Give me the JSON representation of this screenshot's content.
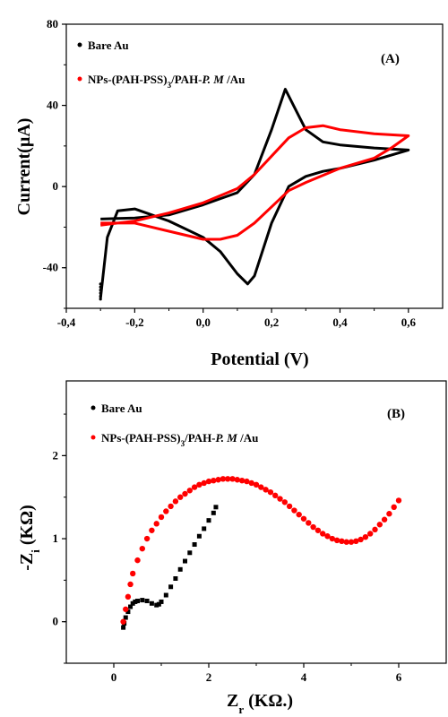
{
  "chart_data": [
    {
      "type": "line",
      "panel_label": "(A)",
      "xlabel": "Potential (V)",
      "ylabel": "Current(µA)",
      "xlim": [
        -0.4,
        0.7
      ],
      "ylim": [
        -60,
        80
      ],
      "xticks": [
        -0.4,
        -0.2,
        0.0,
        0.2,
        0.4,
        0.6
      ],
      "xtick_labels": [
        "-0,4",
        "-0,2",
        "0,0",
        "0,2",
        "0,4",
        "0,6"
      ],
      "yticks": [
        -40,
        0,
        40,
        80
      ],
      "ytick_labels": [
        "-40",
        "0",
        "40",
        "80"
      ],
      "legend_position": "top-left",
      "series": [
        {
          "name": "Bare Au",
          "color": "#000000",
          "forward": [
            [
              -0.3,
              -16
            ],
            [
              -0.2,
              -15.5
            ],
            [
              -0.1,
              -14
            ],
            [
              0.0,
              -9
            ],
            [
              0.1,
              -3
            ],
            [
              0.15,
              6
            ],
            [
              0.2,
              28
            ],
            [
              0.24,
              48
            ],
            [
              0.27,
              38
            ],
            [
              0.3,
              28
            ],
            [
              0.35,
              22
            ],
            [
              0.4,
              20.5
            ],
            [
              0.5,
              19
            ],
            [
              0.6,
              18
            ]
          ],
          "reverse": [
            [
              0.6,
              18
            ],
            [
              0.5,
              13
            ],
            [
              0.4,
              9
            ],
            [
              0.35,
              7.5
            ],
            [
              0.3,
              5
            ],
            [
              0.25,
              0
            ],
            [
              0.2,
              -18
            ],
            [
              0.15,
              -44
            ],
            [
              0.13,
              -48
            ],
            [
              0.1,
              -43
            ],
            [
              0.05,
              -32
            ],
            [
              0.0,
              -25
            ],
            [
              -0.1,
              -17
            ],
            [
              -0.15,
              -14
            ],
            [
              -0.2,
              -11
            ],
            [
              -0.25,
              -12
            ],
            [
              -0.28,
              -25
            ],
            [
              -0.3,
              -55
            ]
          ]
        },
        {
          "name": "NPs-(PAH-PSS)3/PAH-P. M /Au",
          "color": "#ff0000",
          "forward": [
            [
              -0.3,
              -19
            ],
            [
              -0.2,
              -17
            ],
            [
              -0.1,
              -13
            ],
            [
              0.0,
              -8
            ],
            [
              0.1,
              -1
            ],
            [
              0.15,
              6
            ],
            [
              0.2,
              15
            ],
            [
              0.25,
              24
            ],
            [
              0.3,
              29
            ],
            [
              0.35,
              30
            ],
            [
              0.4,
              28
            ],
            [
              0.5,
              26
            ],
            [
              0.6,
              25
            ]
          ],
          "reverse": [
            [
              0.6,
              25
            ],
            [
              0.55,
              19
            ],
            [
              0.5,
              14
            ],
            [
              0.4,
              9
            ],
            [
              0.3,
              2
            ],
            [
              0.25,
              -2
            ],
            [
              0.2,
              -10
            ],
            [
              0.15,
              -18
            ],
            [
              0.1,
              -24
            ],
            [
              0.05,
              -26
            ],
            [
              0.0,
              -26
            ],
            [
              -0.1,
              -22
            ],
            [
              -0.2,
              -18
            ],
            [
              -0.3,
              -18
            ]
          ]
        }
      ]
    },
    {
      "type": "scatter",
      "panel_label": "(B)",
      "xlabel": "Z_r (KΩ)",
      "ylabel": "-Z_i (KΩ)",
      "xlim": [
        -1,
        7
      ],
      "ylim": [
        -0.5,
        2.9
      ],
      "xticks": [
        0,
        2,
        4,
        6
      ],
      "xtick_labels": [
        "0",
        "2",
        "4",
        "6"
      ],
      "yticks": [
        0,
        1,
        2
      ],
      "ytick_labels": [
        "0",
        "1",
        "2"
      ],
      "legend_position": "top-left",
      "series": [
        {
          "name": "Bare Au",
          "color": "#000000",
          "marker": "square",
          "points": [
            [
              0.2,
              -0.07
            ],
            [
              0.22,
              -0.02
            ],
            [
              0.25,
              0.05
            ],
            [
              0.3,
              0.12
            ],
            [
              0.35,
              0.18
            ],
            [
              0.4,
              0.22
            ],
            [
              0.45,
              0.24
            ],
            [
              0.5,
              0.25
            ],
            [
              0.6,
              0.26
            ],
            [
              0.7,
              0.25
            ],
            [
              0.8,
              0.22
            ],
            [
              0.9,
              0.2
            ],
            [
              0.95,
              0.21
            ],
            [
              1.0,
              0.24
            ],
            [
              1.1,
              0.32
            ],
            [
              1.2,
              0.42
            ],
            [
              1.3,
              0.52
            ],
            [
              1.4,
              0.63
            ],
            [
              1.5,
              0.73
            ],
            [
              1.6,
              0.83
            ],
            [
              1.7,
              0.93
            ],
            [
              1.8,
              1.03
            ],
            [
              1.9,
              1.12
            ],
            [
              2.0,
              1.22
            ],
            [
              2.1,
              1.31
            ],
            [
              2.15,
              1.38
            ]
          ]
        },
        {
          "name": "NPs-(PAH-PSS)3/PAH-P. M /Au",
          "color": "#ff0000",
          "marker": "circle",
          "points": [
            [
              0.2,
              0.0
            ],
            [
              0.25,
              0.15
            ],
            [
              0.3,
              0.3
            ],
            [
              0.35,
              0.45
            ],
            [
              0.4,
              0.58
            ],
            [
              0.5,
              0.74
            ],
            [
              0.6,
              0.88
            ],
            [
              0.7,
              1.0
            ],
            [
              0.8,
              1.1
            ],
            [
              0.9,
              1.18
            ],
            [
              1.0,
              1.26
            ],
            [
              1.1,
              1.33
            ],
            [
              1.2,
              1.39
            ],
            [
              1.3,
              1.45
            ],
            [
              1.4,
              1.5
            ],
            [
              1.5,
              1.54
            ],
            [
              1.6,
              1.58
            ],
            [
              1.7,
              1.62
            ],
            [
              1.8,
              1.65
            ],
            [
              1.9,
              1.67
            ],
            [
              2.0,
              1.69
            ],
            [
              2.1,
              1.7
            ],
            [
              2.2,
              1.71
            ],
            [
              2.3,
              1.72
            ],
            [
              2.4,
              1.72
            ],
            [
              2.5,
              1.72
            ],
            [
              2.6,
              1.71
            ],
            [
              2.7,
              1.7
            ],
            [
              2.8,
              1.69
            ],
            [
              2.9,
              1.67
            ],
            [
              3.0,
              1.65
            ],
            [
              3.1,
              1.62
            ],
            [
              3.2,
              1.59
            ],
            [
              3.3,
              1.56
            ],
            [
              3.4,
              1.52
            ],
            [
              3.5,
              1.48
            ],
            [
              3.6,
              1.44
            ],
            [
              3.7,
              1.39
            ],
            [
              3.8,
              1.34
            ],
            [
              3.9,
              1.29
            ],
            [
              4.0,
              1.24
            ],
            [
              4.1,
              1.19
            ],
            [
              4.2,
              1.14
            ],
            [
              4.3,
              1.1
            ],
            [
              4.4,
              1.06
            ],
            [
              4.5,
              1.03
            ],
            [
              4.6,
              1.0
            ],
            [
              4.7,
              0.98
            ],
            [
              4.8,
              0.97
            ],
            [
              4.9,
              0.96
            ],
            [
              5.0,
              0.96
            ],
            [
              5.1,
              0.97
            ],
            [
              5.2,
              0.99
            ],
            [
              5.3,
              1.02
            ],
            [
              5.4,
              1.06
            ],
            [
              5.5,
              1.11
            ],
            [
              5.6,
              1.17
            ],
            [
              5.7,
              1.23
            ],
            [
              5.8,
              1.3
            ],
            [
              5.9,
              1.38
            ],
            [
              6.0,
              1.46
            ]
          ]
        }
      ]
    }
  ]
}
